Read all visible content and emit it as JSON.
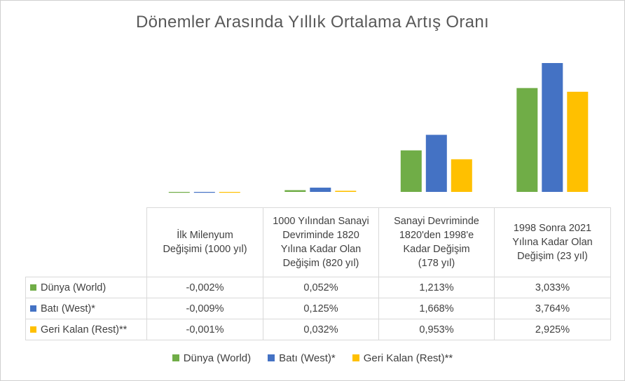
{
  "chart_data": {
    "type": "bar",
    "title": "Dönemler Arasında Yıllık Ortalama Artış Oranı",
    "categories": [
      "İlk Milenyum\nDeğişimi (1000 yıl)",
      "1000 Yılından Sanayi\nDevriminde 1820\nYılına Kadar Olan\nDeğişim (820 yıl)",
      "Sanayi Devriminde\n1820'den 1998'e\nKadar Değişim\n(178 yıl)",
      "1998 Sonra 2021\nYılına  Kadar Olan\nDeğişim (23 yıl)"
    ],
    "series": [
      {
        "name": "Dünya (World)",
        "color": "#70AD47",
        "values": [
          -0.002,
          0.052,
          1.213,
          3.033
        ],
        "labels": [
          "-0,002%",
          "0,052%",
          "1,213%",
          "3,033%"
        ]
      },
      {
        "name": "Batı (West)*",
        "color": "#4472C4",
        "values": [
          -0.009,
          0.125,
          1.668,
          3.764
        ],
        "labels": [
          "-0,009%",
          "0,125%",
          "1,668%",
          "3,764%"
        ]
      },
      {
        "name": "Geri Kalan (Rest)**",
        "color": "#FFC000",
        "values": [
          -0.001,
          0.032,
          0.953,
          2.925
        ],
        "labels": [
          "-0,001%",
          "0,032%",
          "0,953%",
          "2,925%"
        ]
      }
    ],
    "ylim": [
      0,
      3.764
    ],
    "grid": false,
    "legend_position": "bottom",
    "data_table": true
  }
}
